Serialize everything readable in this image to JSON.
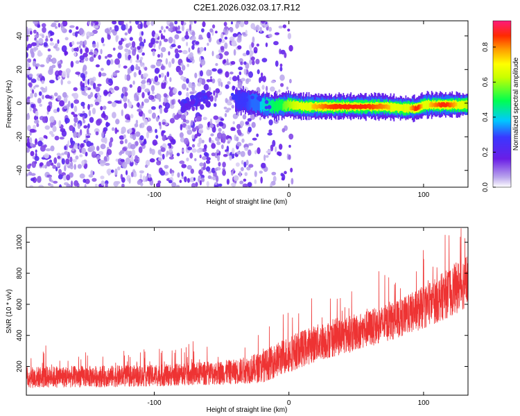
{
  "chart_data": [
    {
      "type": "heatmap",
      "title": "C2E1.2026.032.03.17.R12",
      "xlabel": "Height of straight line (km)",
      "ylabel": "Frequency (Hz)",
      "xlim": [
        -195,
        133
      ],
      "ylim": [
        -50,
        49
      ],
      "xticks": [
        -100,
        0,
        100
      ],
      "yticks": [
        -40,
        -20,
        0,
        20,
        40
      ],
      "xtick_labels": [
        "-100",
        "0",
        "100"
      ],
      "ytick_labels": [
        "-40",
        "-20",
        "0",
        "20",
        "40"
      ],
      "colorbar": {
        "label": "Normalized spectral amplitude",
        "range": [
          0,
          0.95
        ],
        "ticks": [
          0.0,
          0.2,
          0.4,
          0.6,
          0.8
        ],
        "tick_labels": [
          "0.0",
          "0.2",
          "0.4",
          "0.6",
          "0.8"
        ]
      },
      "ridge": {
        "description": "narrow high-amplitude band near 0 Hz from about -40 km to 133 km",
        "x": [
          -40,
          -30,
          -20,
          -10,
          0,
          10,
          30,
          50,
          70,
          85,
          95,
          100,
          115,
          133
        ],
        "freq": [
          2,
          1,
          -1,
          -2,
          -1,
          -2,
          -2,
          -2,
          -2,
          -3,
          -3,
          -1,
          -1,
          -1
        ],
        "amplitude": [
          0.25,
          0.3,
          0.4,
          0.5,
          0.6,
          0.7,
          0.85,
          0.9,
          0.8,
          0.65,
          0.9,
          0.7,
          0.9,
          0.6
        ]
      }
    },
    {
      "type": "line",
      "xlabel": "Height of straight line (km)",
      "ylabel": "SNR (10 * v/v)",
      "xlim": [
        -195,
        133
      ],
      "ylim": [
        15,
        1095
      ],
      "xticks": [
        -100,
        0,
        100
      ],
      "yticks": [
        200,
        400,
        600,
        800,
        1000
      ],
      "xtick_labels": [
        "-100",
        "0",
        "100"
      ],
      "ytick_labels": [
        "200",
        "400",
        "600",
        "800",
        "1000"
      ],
      "series": [
        {
          "name": "SNR",
          "color": "#ee3333",
          "trend_x": [
            -195,
            -100,
            -40,
            -20,
            0,
            20,
            50,
            80,
            100,
            120,
            133
          ],
          "trend_y": [
            130,
            140,
            165,
            195,
            280,
            350,
            420,
            500,
            580,
            680,
            760
          ],
          "spread": [
            70,
            70,
            80,
            100,
            120,
            120,
            120,
            120,
            140,
            160,
            180
          ]
        }
      ]
    }
  ]
}
